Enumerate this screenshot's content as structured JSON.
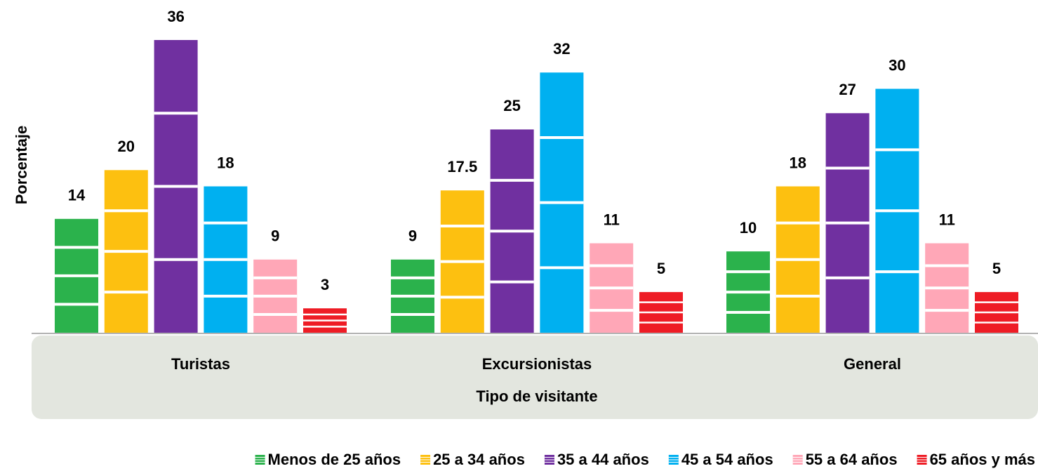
{
  "chart_data": {
    "type": "bar",
    "categories": [
      "Turistas",
      "Excursionistas",
      "General"
    ],
    "x_label": "Tipo de visitante",
    "y_label": "Porcentaje",
    "series": [
      {
        "name": "Menos de 25 años",
        "color": "#2bb24c",
        "values": [
          14,
          9,
          10
        ]
      },
      {
        "name": "25 a 34 años",
        "color": "#fdc010",
        "values": [
          20,
          17.5,
          18
        ]
      },
      {
        "name": "35 a 44 años",
        "color": "#7030a0",
        "values": [
          36,
          25,
          27
        ]
      },
      {
        "name": "45 a 54 años",
        "color": "#00b0f0",
        "values": [
          18,
          32,
          30
        ]
      },
      {
        "name": "55 a 64 años",
        "color": "#ffa7b7",
        "values": [
          9,
          11,
          11
        ]
      },
      {
        "name": "65 años y más",
        "color": "#ee1c25",
        "values": [
          3,
          5,
          5
        ]
      }
    ]
  }
}
